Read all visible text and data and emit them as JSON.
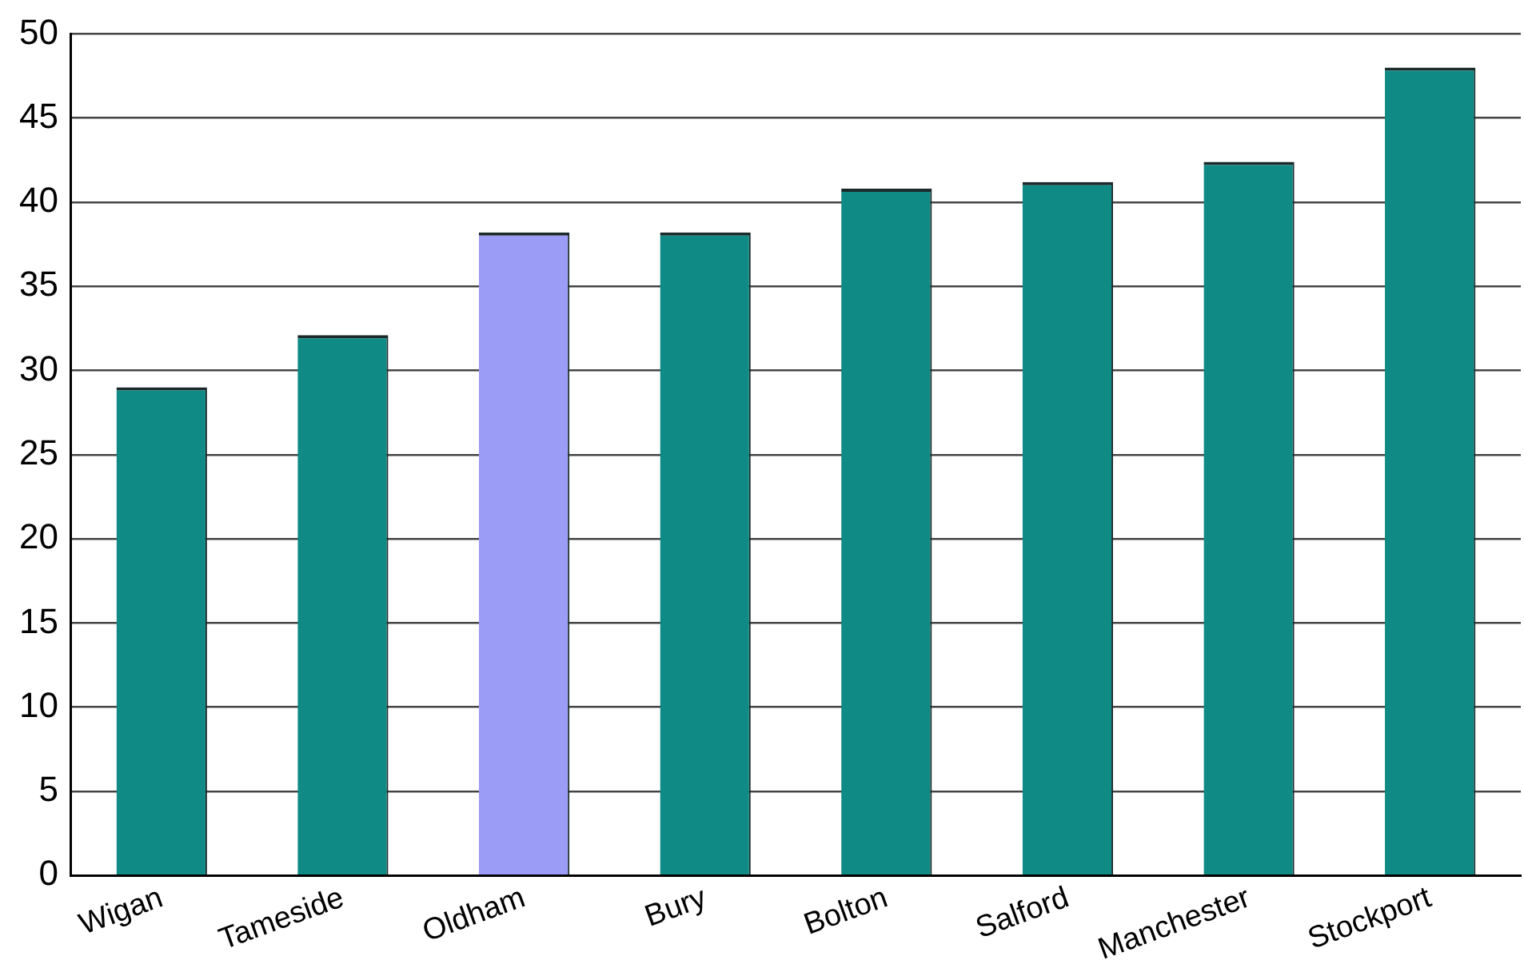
{
  "chart_data": {
    "type": "bar",
    "categories": [
      "Wigan",
      "Tameside",
      "Oldham",
      "Bury",
      "Bolton",
      "Salford",
      "Manchester",
      "Stockport"
    ],
    "values": [
      29.0,
      32.1,
      38.2,
      38.2,
      40.8,
      41.2,
      42.4,
      48.0
    ],
    "colors": [
      "#0f8a85",
      "#0f8a85",
      "#9b9cf5",
      "#0f8a85",
      "#0f8a85",
      "#0f8a85",
      "#0f8a85",
      "#0f8a85"
    ],
    "ylim": [
      0,
      50
    ],
    "yticks": [
      0,
      5,
      10,
      15,
      20,
      25,
      30,
      35,
      40,
      45,
      50
    ],
    "grid": "y",
    "legend": false
  }
}
